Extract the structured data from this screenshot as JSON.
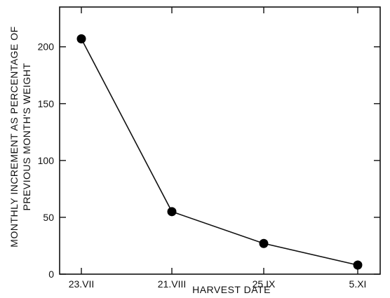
{
  "chart_data": {
    "type": "line",
    "xlabel": "HARVEST DATE",
    "ylabel_line1": "MONTHLY INCREMENT AS PERCENTAGE OF",
    "ylabel_line2": "PREVIOUS MONTH'S WEIGHT",
    "categories": [
      "23.VII",
      "21.VIII",
      "25.IX",
      "5.XI"
    ],
    "values": [
      207,
      55,
      27,
      8
    ],
    "ylim": [
      0,
      235
    ],
    "yticks": [
      0,
      50,
      100,
      150,
      200
    ],
    "grid": false,
    "legend": "none"
  }
}
